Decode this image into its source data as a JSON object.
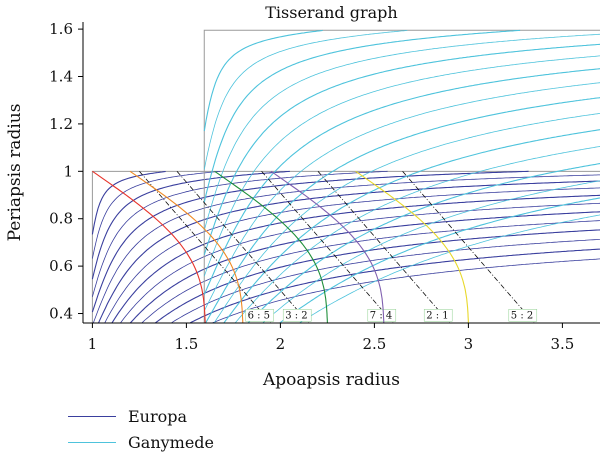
{
  "chart_data": {
    "type": "line",
    "title": "Tisserand graph",
    "xlabel": "Apoapsis radius",
    "ylabel": "Periapsis radius",
    "xlim": [
      0.95,
      3.7
    ],
    "ylim": [
      0.36,
      1.63
    ],
    "xticks": [
      1,
      1.5,
      2,
      2.5,
      3,
      3.5
    ],
    "xtick_labels": [
      "1",
      "1.5",
      "2",
      "2.5",
      "3",
      "3.5"
    ],
    "yticks": [
      0.4,
      0.6,
      0.8,
      1,
      1.2,
      1.4,
      1.6
    ],
    "ytick_labels": [
      "0.4",
      "0.6",
      "0.8",
      "1",
      "1.2",
      "1.4",
      "1.6"
    ],
    "series": [
      {
        "name": "Europa",
        "color": "#3a3f9e",
        "moon_radius": 1.0
      },
      {
        "name": "Ganymede",
        "color": "#4ec3dc",
        "moon_radius": 1.595
      }
    ],
    "vinf_levels": [
      0.08,
      0.12,
      0.16,
      0.2,
      0.24,
      0.28,
      0.32,
      0.36,
      0.4,
      0.44,
      0.48,
      0.52,
      0.56,
      0.6,
      0.64,
      0.68
    ],
    "resonances": [
      {
        "label": "6 : 5",
        "ratio": 1.2,
        "color": "#e8332a",
        "ap_at_bottom": 1.9
      },
      {
        "label": "3 : 2",
        "ratio": 1.5,
        "color": "#f08a24",
        "ap_at_bottom": 2.1
      },
      {
        "label": "7 : 4",
        "ratio": 1.75,
        "color": "#1f8f3a",
        "ap_at_bottom": 2.55
      },
      {
        "label": "2 : 1",
        "ratio": 2.0,
        "color": "#8060b0",
        "ap_at_bottom": 2.85
      },
      {
        "label": "5 : 2",
        "ratio": 2.5,
        "color": "#e8d82a",
        "ap_at_bottom": 3.3
      }
    ],
    "legend_position": "bottom-left",
    "grid": false
  },
  "legend": {
    "items": [
      {
        "label": "Europa",
        "color": "#3a3f9e"
      },
      {
        "label": "Ganymede",
        "color": "#4ec3dc"
      }
    ]
  }
}
